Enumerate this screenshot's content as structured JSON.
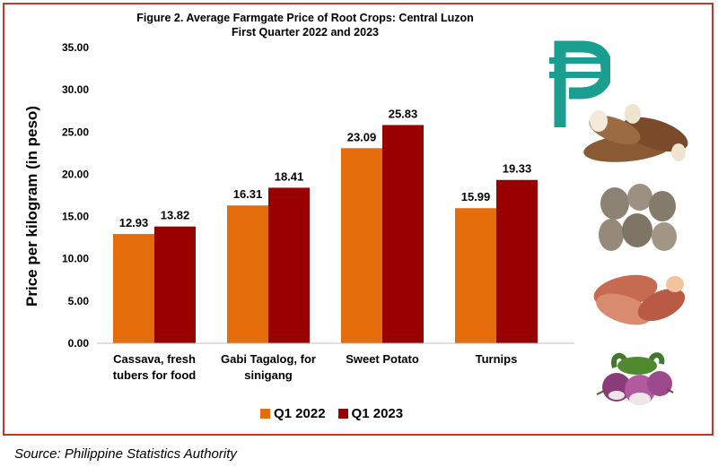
{
  "chart_data": {
    "type": "bar",
    "title_line1": "Figure 2. Average Farmgate Price of Root Crops: Central Luzon",
    "title_line2": "First Quarter 2022 and 2023",
    "ylabel": "Price per kilogram (in peso)",
    "xlabel": "",
    "ylim": [
      0,
      35
    ],
    "yticks": [
      "0.00",
      "5.00",
      "10.00",
      "15.00",
      "20.00",
      "25.00",
      "30.00",
      "35.00"
    ],
    "categories": [
      [
        "Cassava, fresh",
        "tubers for food"
      ],
      [
        "Gabi Tagalog, for",
        "sinigang"
      ],
      [
        "Sweet Potato"
      ],
      [
        "Turnips"
      ]
    ],
    "series": [
      {
        "name": "Q1 2022",
        "color": "#e46c0a",
        "values": [
          12.93,
          16.31,
          23.09,
          15.99
        ],
        "labels": [
          "12.93",
          "16.31",
          "23.09",
          "15.99"
        ]
      },
      {
        "name": "Q1 2023",
        "color": "#990000",
        "values": [
          13.82,
          18.41,
          25.83,
          19.33
        ],
        "labels": [
          "13.82",
          "18.41",
          "25.83",
          "19.33"
        ]
      }
    ],
    "grid": false,
    "legend_position": "bottom"
  },
  "source": "Source: Philippine Statistics Authority",
  "icons": [
    "peso-sign-icon",
    "cassava-image",
    "gabi-image",
    "sweet-potato-image",
    "turnips-image"
  ],
  "peso_color": "#1a9e8f",
  "frame_color": "#c0392b"
}
